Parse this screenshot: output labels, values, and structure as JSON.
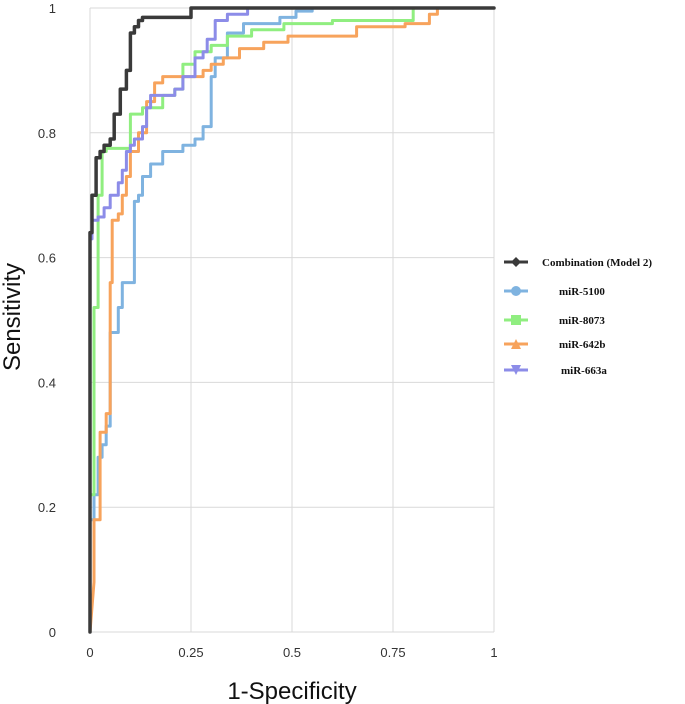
{
  "chart_data": {
    "type": "line",
    "title": "",
    "xlabel": "1-Specificity",
    "ylabel": "Sensitivity",
    "xlim": [
      0,
      1
    ],
    "ylim": [
      0,
      1
    ],
    "grid": true,
    "legend_position": "right",
    "x_ticks": [
      "0",
      "0.25",
      "0.5",
      "0.75",
      "1"
    ],
    "y_ticks": [
      "0",
      "0.2",
      "0.4",
      "0.6",
      "0.8",
      "1"
    ],
    "x_tick_values": [
      0,
      0.25,
      0.5,
      0.75,
      1
    ],
    "y_tick_values": [
      0,
      0.2,
      0.4,
      0.6,
      0.8,
      1
    ],
    "series": [
      {
        "name": "Combination (Model 2)",
        "color": "#3a3a3a",
        "marker": "diamond",
        "points": [
          [
            0,
            0
          ],
          [
            0,
            0.64
          ],
          [
            0.005,
            0.64
          ],
          [
            0.005,
            0.7
          ],
          [
            0.015,
            0.7
          ],
          [
            0.015,
            0.76
          ],
          [
            0.025,
            0.76
          ],
          [
            0.025,
            0.77
          ],
          [
            0.035,
            0.77
          ],
          [
            0.035,
            0.78
          ],
          [
            0.05,
            0.78
          ],
          [
            0.05,
            0.79
          ],
          [
            0.06,
            0.79
          ],
          [
            0.06,
            0.83
          ],
          [
            0.075,
            0.83
          ],
          [
            0.075,
            0.87
          ],
          [
            0.09,
            0.87
          ],
          [
            0.09,
            0.9
          ],
          [
            0.1,
            0.9
          ],
          [
            0.1,
            0.96
          ],
          [
            0.11,
            0.96
          ],
          [
            0.11,
            0.97
          ],
          [
            0.12,
            0.97
          ],
          [
            0.12,
            0.98
          ],
          [
            0.13,
            0.98
          ],
          [
            0.13,
            0.985
          ],
          [
            0.25,
            0.985
          ],
          [
            0.25,
            1.0
          ],
          [
            1,
            1.0
          ]
        ]
      },
      {
        "name": "miR-5100",
        "color": "#7fb3e0",
        "marker": "circle",
        "points": [
          [
            0,
            0
          ],
          [
            0,
            0.18
          ],
          [
            0.01,
            0.18
          ],
          [
            0.01,
            0.22
          ],
          [
            0.02,
            0.22
          ],
          [
            0.02,
            0.28
          ],
          [
            0.03,
            0.28
          ],
          [
            0.03,
            0.3
          ],
          [
            0.04,
            0.3
          ],
          [
            0.04,
            0.33
          ],
          [
            0.05,
            0.33
          ],
          [
            0.05,
            0.48
          ],
          [
            0.07,
            0.48
          ],
          [
            0.07,
            0.52
          ],
          [
            0.08,
            0.52
          ],
          [
            0.08,
            0.56
          ],
          [
            0.11,
            0.56
          ],
          [
            0.11,
            0.69
          ],
          [
            0.12,
            0.69
          ],
          [
            0.12,
            0.7
          ],
          [
            0.13,
            0.7
          ],
          [
            0.13,
            0.73
          ],
          [
            0.15,
            0.73
          ],
          [
            0.15,
            0.75
          ],
          [
            0.18,
            0.75
          ],
          [
            0.18,
            0.77
          ],
          [
            0.23,
            0.77
          ],
          [
            0.23,
            0.78
          ],
          [
            0.26,
            0.78
          ],
          [
            0.26,
            0.79
          ],
          [
            0.28,
            0.79
          ],
          [
            0.28,
            0.81
          ],
          [
            0.3,
            0.81
          ],
          [
            0.3,
            0.89
          ],
          [
            0.31,
            0.89
          ],
          [
            0.31,
            0.92
          ],
          [
            0.34,
            0.92
          ],
          [
            0.34,
            0.96
          ],
          [
            0.38,
            0.96
          ],
          [
            0.38,
            0.975
          ],
          [
            0.47,
            0.975
          ],
          [
            0.47,
            0.985
          ],
          [
            0.51,
            0.985
          ],
          [
            0.51,
            0.995
          ],
          [
            0.55,
            0.995
          ],
          [
            0.55,
            1.0
          ],
          [
            1,
            1.0
          ]
        ]
      },
      {
        "name": "miR-8073",
        "color": "#90ee80",
        "marker": "square",
        "points": [
          [
            0,
            0
          ],
          [
            0,
            0.22
          ],
          [
            0.01,
            0.22
          ],
          [
            0.01,
            0.52
          ],
          [
            0.02,
            0.52
          ],
          [
            0.02,
            0.7
          ],
          [
            0.03,
            0.7
          ],
          [
            0.03,
            0.77
          ],
          [
            0.04,
            0.77
          ],
          [
            0.04,
            0.775
          ],
          [
            0.1,
            0.775
          ],
          [
            0.1,
            0.83
          ],
          [
            0.13,
            0.83
          ],
          [
            0.13,
            0.84
          ],
          [
            0.18,
            0.84
          ],
          [
            0.18,
            0.86
          ],
          [
            0.21,
            0.86
          ],
          [
            0.21,
            0.87
          ],
          [
            0.23,
            0.87
          ],
          [
            0.23,
            0.91
          ],
          [
            0.26,
            0.91
          ],
          [
            0.26,
            0.93
          ],
          [
            0.3,
            0.93
          ],
          [
            0.3,
            0.94
          ],
          [
            0.34,
            0.94
          ],
          [
            0.34,
            0.955
          ],
          [
            0.4,
            0.955
          ],
          [
            0.4,
            0.965
          ],
          [
            0.48,
            0.965
          ],
          [
            0.48,
            0.975
          ],
          [
            0.6,
            0.975
          ],
          [
            0.6,
            0.98
          ],
          [
            0.8,
            0.98
          ],
          [
            0.8,
            1.0
          ],
          [
            1,
            1.0
          ]
        ]
      },
      {
        "name": "miR-642b",
        "color": "#f7a35c",
        "marker": "triangle-up",
        "points": [
          [
            0,
            0
          ],
          [
            0.01,
            0.08
          ],
          [
            0.01,
            0.18
          ],
          [
            0.025,
            0.18
          ],
          [
            0.025,
            0.32
          ],
          [
            0.04,
            0.32
          ],
          [
            0.04,
            0.35
          ],
          [
            0.05,
            0.35
          ],
          [
            0.05,
            0.56
          ],
          [
            0.055,
            0.56
          ],
          [
            0.055,
            0.66
          ],
          [
            0.07,
            0.66
          ],
          [
            0.07,
            0.67
          ],
          [
            0.08,
            0.67
          ],
          [
            0.08,
            0.7
          ],
          [
            0.09,
            0.7
          ],
          [
            0.09,
            0.73
          ],
          [
            0.1,
            0.73
          ],
          [
            0.1,
            0.77
          ],
          [
            0.12,
            0.77
          ],
          [
            0.12,
            0.8
          ],
          [
            0.14,
            0.8
          ],
          [
            0.14,
            0.85
          ],
          [
            0.16,
            0.85
          ],
          [
            0.16,
            0.88
          ],
          [
            0.18,
            0.88
          ],
          [
            0.18,
            0.89
          ],
          [
            0.28,
            0.89
          ],
          [
            0.28,
            0.9
          ],
          [
            0.3,
            0.9
          ],
          [
            0.3,
            0.91
          ],
          [
            0.33,
            0.91
          ],
          [
            0.33,
            0.92
          ],
          [
            0.37,
            0.92
          ],
          [
            0.37,
            0.935
          ],
          [
            0.43,
            0.935
          ],
          [
            0.43,
            0.945
          ],
          [
            0.49,
            0.945
          ],
          [
            0.49,
            0.955
          ],
          [
            0.66,
            0.955
          ],
          [
            0.66,
            0.97
          ],
          [
            0.78,
            0.97
          ],
          [
            0.78,
            0.975
          ],
          [
            0.84,
            0.975
          ],
          [
            0.84,
            0.99
          ],
          [
            0.86,
            0.99
          ],
          [
            0.86,
            1.0
          ],
          [
            1,
            1.0
          ]
        ]
      },
      {
        "name": "miR-663a",
        "color": "#8c8ce8",
        "marker": "triangle-down",
        "points": [
          [
            0,
            0
          ],
          [
            0,
            0.63
          ],
          [
            0.005,
            0.63
          ],
          [
            0.005,
            0.66
          ],
          [
            0.02,
            0.66
          ],
          [
            0.02,
            0.665
          ],
          [
            0.035,
            0.665
          ],
          [
            0.035,
            0.68
          ],
          [
            0.05,
            0.68
          ],
          [
            0.05,
            0.7
          ],
          [
            0.07,
            0.7
          ],
          [
            0.07,
            0.72
          ],
          [
            0.08,
            0.72
          ],
          [
            0.08,
            0.74
          ],
          [
            0.09,
            0.74
          ],
          [
            0.09,
            0.77
          ],
          [
            0.1,
            0.77
          ],
          [
            0.1,
            0.78
          ],
          [
            0.11,
            0.78
          ],
          [
            0.11,
            0.79
          ],
          [
            0.13,
            0.79
          ],
          [
            0.13,
            0.81
          ],
          [
            0.14,
            0.81
          ],
          [
            0.14,
            0.84
          ],
          [
            0.15,
            0.84
          ],
          [
            0.15,
            0.86
          ],
          [
            0.21,
            0.86
          ],
          [
            0.21,
            0.87
          ],
          [
            0.23,
            0.87
          ],
          [
            0.23,
            0.89
          ],
          [
            0.26,
            0.89
          ],
          [
            0.26,
            0.92
          ],
          [
            0.28,
            0.92
          ],
          [
            0.28,
            0.93
          ],
          [
            0.29,
            0.93
          ],
          [
            0.29,
            0.95
          ],
          [
            0.31,
            0.95
          ],
          [
            0.31,
            0.98
          ],
          [
            0.34,
            0.98
          ],
          [
            0.34,
            0.99
          ],
          [
            0.39,
            0.99
          ],
          [
            0.39,
            1.0
          ],
          [
            1,
            1.0
          ]
        ]
      }
    ]
  }
}
